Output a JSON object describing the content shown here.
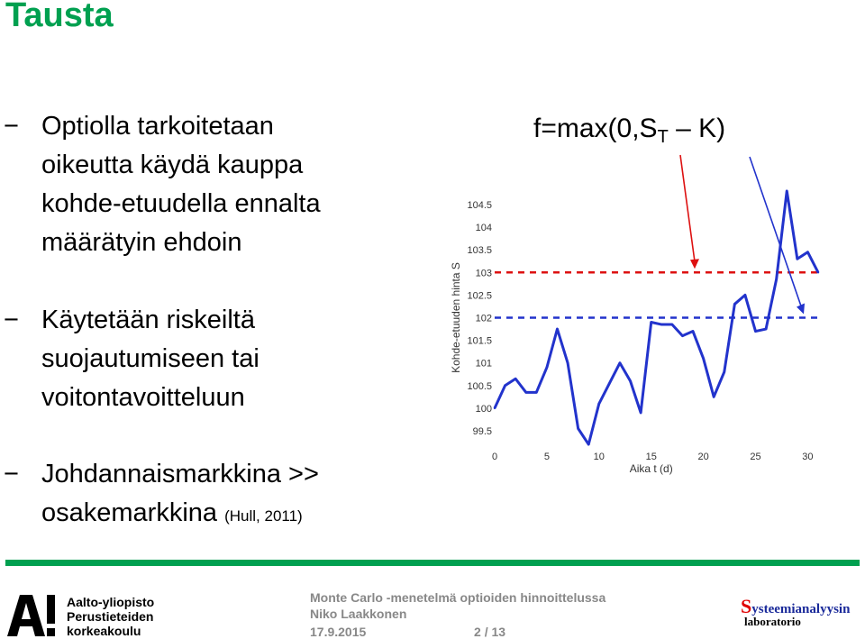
{
  "slide": {
    "title": "Tausta",
    "bullets": [
      {
        "dash": "−",
        "text": "Optiolla tarkoitetaan\noikeutta käydä kauppa\nkohde-etuudella ennalta\nmäärätyin ehdoin"
      },
      {
        "dash": "−",
        "text": "Käytetään riskeiltä\nsuojautumiseen tai\nvoitontavoitteluun"
      },
      {
        "dash": "−",
        "text": "Johdannaismarkkina >>\nosakemarkkina",
        "small": "(Hull, 2011)"
      }
    ],
    "formula": {
      "prefix": "f=max(0,S",
      "sub": "T",
      "suffix": " – K)"
    },
    "colors": {
      "title": "#00a050",
      "line": "#2233cc",
      "red": "#dd1111",
      "blue": "#2233cc"
    }
  },
  "chart_data": {
    "type": "line",
    "xlabel": "Aika t (d)",
    "ylabel": "Kohde-etuuden hinta S",
    "xlim": [
      0,
      31
    ],
    "ylim": [
      99.5,
      104.5
    ],
    "xticks": [
      0,
      5,
      10,
      15,
      20,
      25,
      30
    ],
    "yticks": [
      99.5,
      100,
      100.5,
      101,
      101.5,
      102,
      102.5,
      103,
      103.5,
      104,
      104.5
    ],
    "ytick_labels": [
      "99.5",
      "100",
      "100.5",
      "101",
      "101.5",
      "102",
      "102.5",
      "103",
      "103.5",
      "104",
      "104.5"
    ],
    "series": [
      {
        "x": [
          0,
          1,
          2,
          3,
          4,
          5,
          6,
          7,
          8,
          9,
          10,
          11,
          12,
          13,
          14,
          15,
          16,
          17,
          18,
          19,
          20,
          21,
          22,
          23,
          24,
          25,
          26,
          27,
          28,
          29,
          30,
          31
        ],
        "y": [
          100,
          100.5,
          100.65,
          100.35,
          100.35,
          100.9,
          101.75,
          101,
          99.55,
          99.2,
          100.1,
          100.55,
          101,
          100.6,
          99.9,
          101.9,
          101.85,
          101.85,
          101.6,
          101.7,
          101.1,
          100.25,
          100.8,
          102.3,
          102.5,
          101.7,
          101.75,
          102.85,
          104.8,
          103.3,
          103.45,
          103
        ]
      }
    ],
    "reference_lines": [
      {
        "y": 103,
        "color": "#dd1111",
        "style": "dashed",
        "meaning": "K"
      },
      {
        "y": 102,
        "color": "#2233cc",
        "style": "dashed",
        "meaning": "S"
      }
    ]
  },
  "footer": {
    "university_line1": "Aalto-yliopisto",
    "university_line2": "Perustieteiden",
    "university_line3": "korkeakoulu",
    "talk_title": "Monte Carlo -menetelmä optioiden hinnoittelussa",
    "author": "Niko Laakkonen",
    "date": "17.9.2015",
    "page_current": "2",
    "page_sep": "/",
    "page_total": "13",
    "lab_big_letter": "S",
    "lab_rest": "ysteemianalyysin",
    "lab_sub": "laboratorio"
  }
}
